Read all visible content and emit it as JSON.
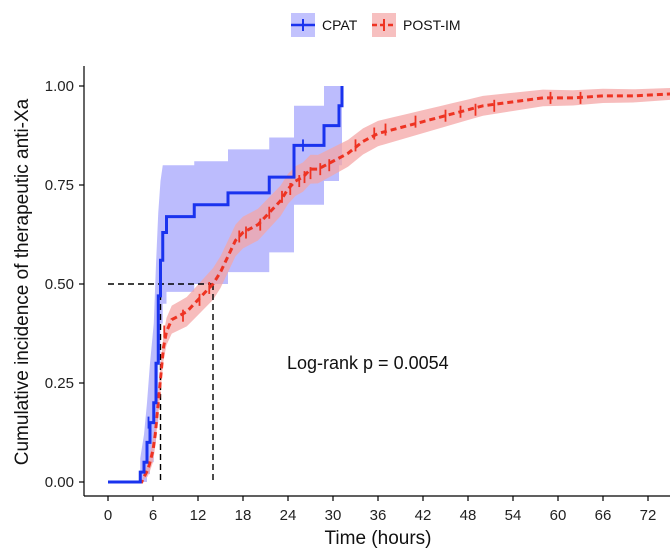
{
  "chart_data": {
    "type": "line",
    "subtype": "kaplan-meier cumulative incidence",
    "xlabel": "Time (hours)",
    "ylabel": "Cumulative incidence of therapeutic anti-Xa",
    "xlim": [
      -2,
      75
    ],
    "ylim": [
      -0.03,
      1.05
    ],
    "xticks": [
      0,
      6,
      12,
      18,
      24,
      30,
      36,
      42,
      48,
      54,
      60,
      66,
      72
    ],
    "yticks": [
      0.0,
      0.25,
      0.5,
      0.75,
      1.0
    ],
    "ytick_labels": [
      "0.00",
      "0.25",
      "0.50",
      "0.75",
      "1.00"
    ],
    "grid": false,
    "legend": {
      "position": "top",
      "entries": [
        "CPAT",
        "POST-IM"
      ]
    },
    "annotation": "Log-rank p = 0.0054",
    "median_lines": [
      {
        "series": "CPAT",
        "x": 7,
        "y": 0.5
      },
      {
        "series": "POST-IM",
        "x": 14,
        "y": 0.5
      }
    ],
    "series": [
      {
        "name": "CPAT",
        "color": "#1a33ee",
        "band_color": "#8f8ffb",
        "line_style": "solid",
        "steps": [
          [
            0,
            0
          ],
          [
            4.3,
            0
          ],
          [
            4.3,
            0.025
          ],
          [
            4.8,
            0.025
          ],
          [
            4.8,
            0.05
          ],
          [
            5.2,
            0.05
          ],
          [
            5.2,
            0.1
          ],
          [
            5.6,
            0.1
          ],
          [
            5.6,
            0.15
          ],
          [
            6.1,
            0.15
          ],
          [
            6.1,
            0.2
          ],
          [
            6.4,
            0.2
          ],
          [
            6.4,
            0.3
          ],
          [
            6.7,
            0.3
          ],
          [
            6.7,
            0.47
          ],
          [
            7.0,
            0.47
          ],
          [
            7.0,
            0.56
          ],
          [
            7.3,
            0.56
          ],
          [
            7.3,
            0.63
          ],
          [
            7.8,
            0.63
          ],
          [
            7.8,
            0.67
          ],
          [
            11.5,
            0.67
          ],
          [
            11.5,
            0.7
          ],
          [
            16,
            0.7
          ],
          [
            16,
            0.73
          ],
          [
            21.5,
            0.73
          ],
          [
            21.5,
            0.77
          ],
          [
            24.8,
            0.77
          ],
          [
            24.8,
            0.85
          ],
          [
            28.8,
            0.85
          ],
          [
            28.8,
            0.9
          ],
          [
            30.8,
            0.9
          ],
          [
            30.8,
            0.95
          ],
          [
            31.2,
            0.95
          ],
          [
            31.2,
            1.0
          ]
        ],
        "band_upper": [
          [
            4.3,
            0.06
          ],
          [
            4.8,
            0.12
          ],
          [
            5.2,
            0.2
          ],
          [
            5.6,
            0.3
          ],
          [
            6.1,
            0.4
          ],
          [
            6.4,
            0.55
          ],
          [
            6.7,
            0.68
          ],
          [
            7.0,
            0.76
          ],
          [
            7.3,
            0.8
          ],
          [
            11.5,
            0.8
          ],
          [
            11.5,
            0.81
          ],
          [
            16,
            0.81
          ],
          [
            16,
            0.84
          ],
          [
            21.5,
            0.84
          ],
          [
            21.5,
            0.87
          ],
          [
            24.8,
            0.87
          ],
          [
            24.8,
            0.95
          ],
          [
            28.8,
            0.95
          ],
          [
            28.8,
            1.0
          ],
          [
            31.2,
            1.0
          ]
        ],
        "band_lower": [
          [
            4.3,
            0
          ],
          [
            5.2,
            0
          ],
          [
            5.2,
            0.02
          ],
          [
            5.6,
            0.02
          ],
          [
            5.6,
            0.05
          ],
          [
            6.1,
            0.05
          ],
          [
            6.1,
            0.1
          ],
          [
            6.4,
            0.1
          ],
          [
            6.4,
            0.15
          ],
          [
            6.7,
            0.15
          ],
          [
            6.7,
            0.3
          ],
          [
            7.0,
            0.3
          ],
          [
            7.0,
            0.4
          ],
          [
            7.3,
            0.4
          ],
          [
            7.3,
            0.45
          ],
          [
            7.8,
            0.45
          ],
          [
            7.8,
            0.48
          ],
          [
            11.5,
            0.48
          ],
          [
            11.5,
            0.5
          ],
          [
            16,
            0.5
          ],
          [
            16,
            0.53
          ],
          [
            21.5,
            0.53
          ],
          [
            21.5,
            0.58
          ],
          [
            24.8,
            0.58
          ],
          [
            24.8,
            0.7
          ],
          [
            28.8,
            0.7
          ],
          [
            28.8,
            0.76
          ],
          [
            30.8,
            0.76
          ],
          [
            30.8,
            0.8
          ],
          [
            31.2,
            0.8
          ]
        ],
        "censor_marks": [
          [
            5.4,
            0.15
          ],
          [
            26,
            0.85
          ]
        ]
      },
      {
        "name": "POST-IM",
        "color": "#ee3322",
        "band_color": "#f4a5a5",
        "line_style": "dashed",
        "curve": [
          [
            0,
            0
          ],
          [
            4.5,
            0
          ],
          [
            4.7,
            0.01
          ],
          [
            5,
            0.02
          ],
          [
            5.3,
            0.03
          ],
          [
            5.6,
            0.05
          ],
          [
            6,
            0.08
          ],
          [
            6.3,
            0.12
          ],
          [
            6.6,
            0.18
          ],
          [
            7,
            0.26
          ],
          [
            7.4,
            0.34
          ],
          [
            7.8,
            0.38
          ],
          [
            8.5,
            0.41
          ],
          [
            9.5,
            0.42
          ],
          [
            10.5,
            0.43
          ],
          [
            11.5,
            0.45
          ],
          [
            12.5,
            0.47
          ],
          [
            13.5,
            0.49
          ],
          [
            14,
            0.5
          ],
          [
            15,
            0.53
          ],
          [
            16,
            0.57
          ],
          [
            17,
            0.61
          ],
          [
            18,
            0.63
          ],
          [
            19,
            0.64
          ],
          [
            20,
            0.65
          ],
          [
            21,
            0.67
          ],
          [
            22,
            0.69
          ],
          [
            23,
            0.71
          ],
          [
            24,
            0.74
          ],
          [
            25,
            0.76
          ],
          [
            26,
            0.77
          ],
          [
            27,
            0.79
          ],
          [
            28,
            0.79
          ],
          [
            29,
            0.8
          ],
          [
            30,
            0.81
          ],
          [
            32,
            0.83
          ],
          [
            34,
            0.86
          ],
          [
            36,
            0.88
          ],
          [
            38,
            0.89
          ],
          [
            40,
            0.9
          ],
          [
            42,
            0.91
          ],
          [
            44,
            0.92
          ],
          [
            46,
            0.93
          ],
          [
            48,
            0.94
          ],
          [
            50,
            0.95
          ],
          [
            54,
            0.96
          ],
          [
            58,
            0.97
          ],
          [
            62,
            0.97
          ],
          [
            66,
            0.975
          ],
          [
            70,
            0.975
          ],
          [
            75,
            0.98
          ]
        ],
        "band_half_width": [
          [
            0,
            0
          ],
          [
            4.5,
            0
          ],
          [
            6,
            0.03
          ],
          [
            8,
            0.035
          ],
          [
            14,
            0.04
          ],
          [
            20,
            0.04
          ],
          [
            30,
            0.035
          ],
          [
            40,
            0.03
          ],
          [
            50,
            0.025
          ],
          [
            60,
            0.02
          ],
          [
            75,
            0.015
          ]
        ],
        "censor_marks": [
          [
            7.5,
            0.38
          ],
          [
            10,
            0.42
          ],
          [
            12.2,
            0.46
          ],
          [
            13.5,
            0.49
          ],
          [
            17.5,
            0.62
          ],
          [
            18.4,
            0.63
          ],
          [
            20.3,
            0.65
          ],
          [
            21.5,
            0.68
          ],
          [
            23.2,
            0.72
          ],
          [
            24.3,
            0.74
          ],
          [
            25.5,
            0.76
          ],
          [
            26.2,
            0.77
          ],
          [
            27,
            0.78
          ],
          [
            28.3,
            0.79
          ],
          [
            29.5,
            0.8
          ],
          [
            33,
            0.85
          ],
          [
            35.5,
            0.88
          ],
          [
            37,
            0.89
          ],
          [
            41,
            0.91
          ],
          [
            45,
            0.925
          ],
          [
            47,
            0.935
          ],
          [
            49,
            0.94
          ],
          [
            51.5,
            0.95
          ],
          [
            59,
            0.97
          ],
          [
            63,
            0.97
          ]
        ]
      }
    ]
  }
}
